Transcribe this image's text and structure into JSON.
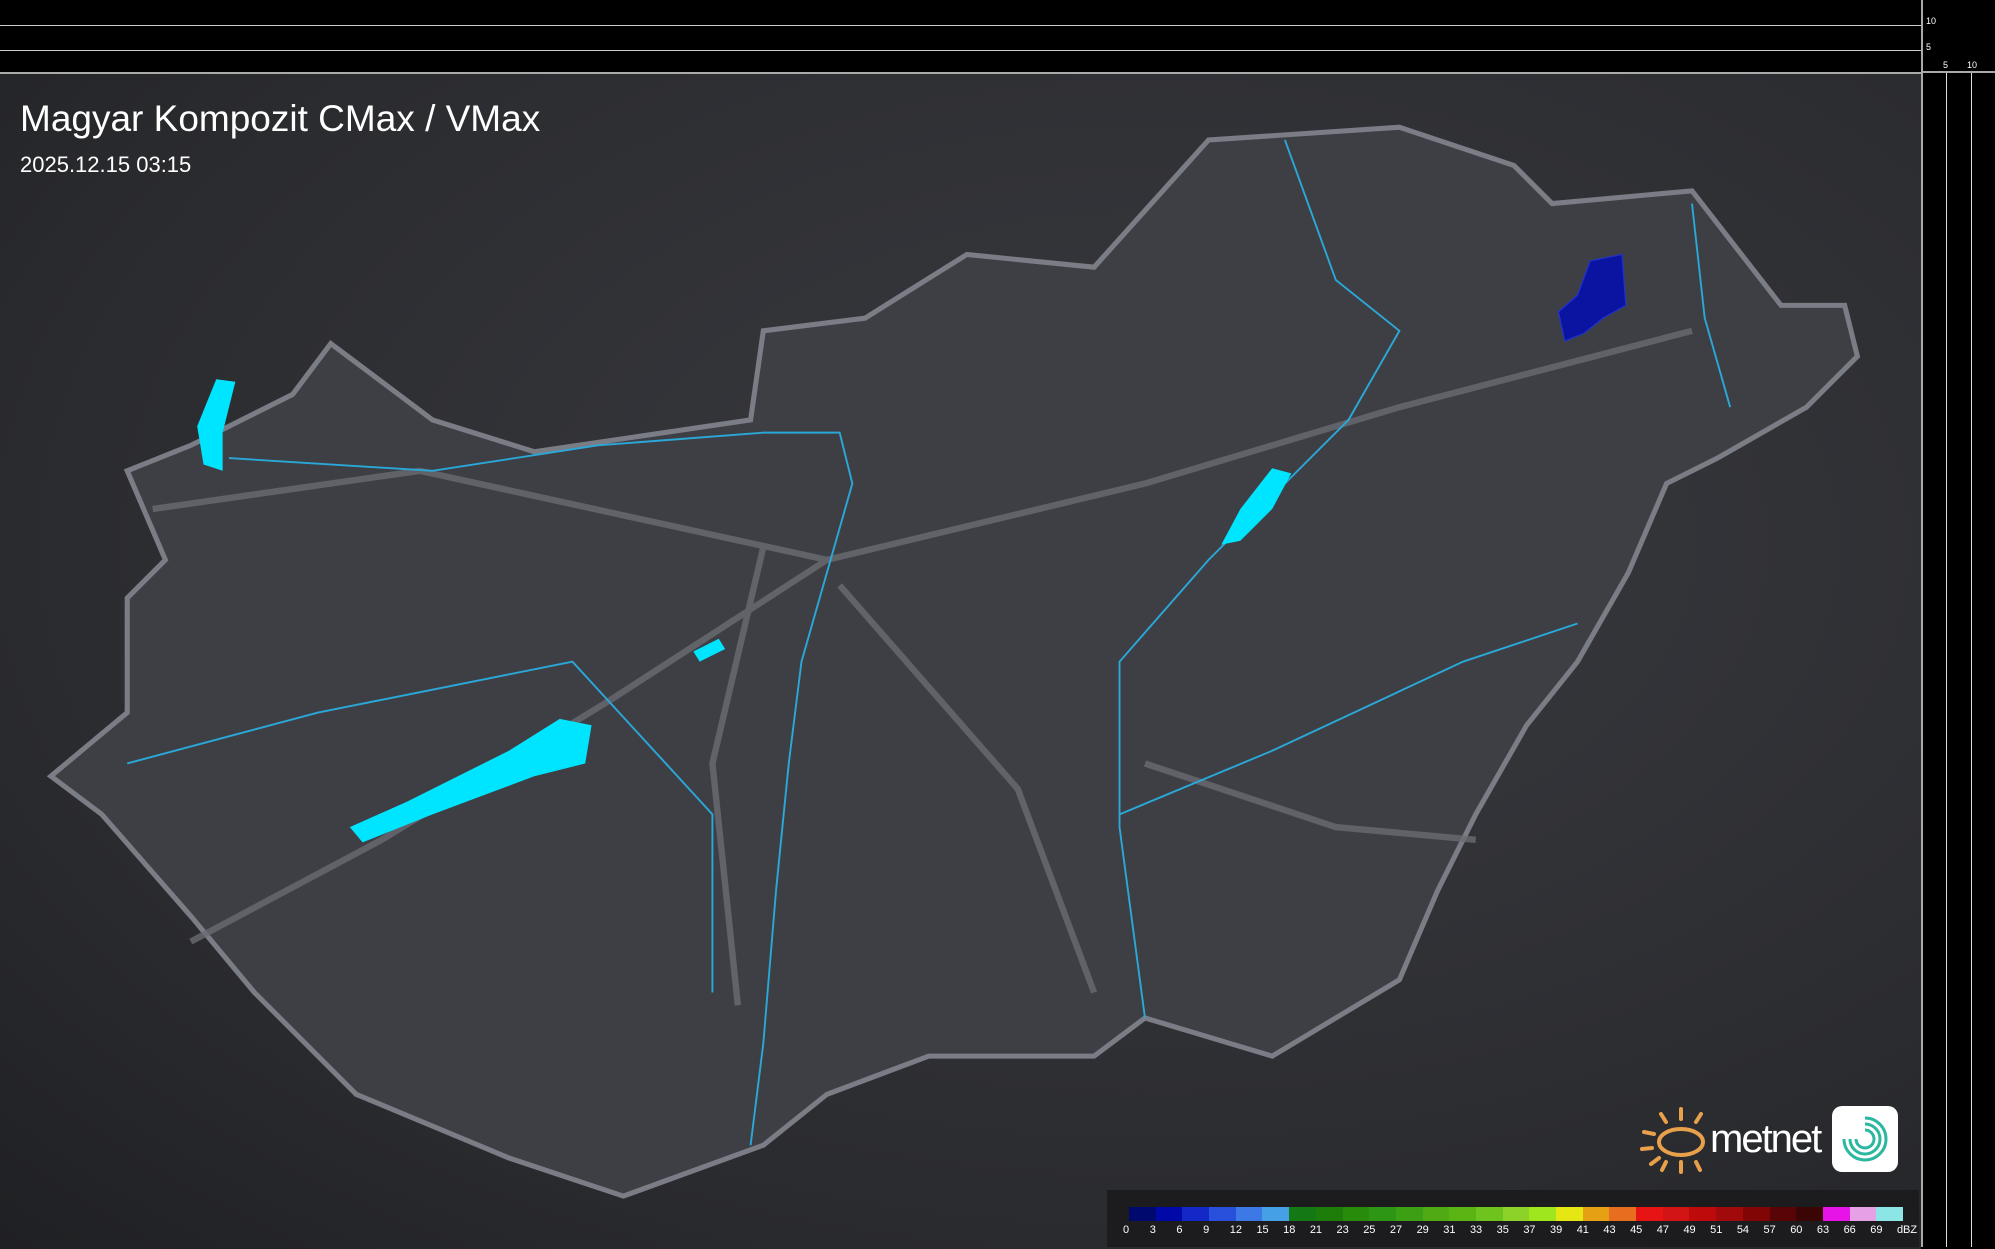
{
  "title": "Magyar Kompozit CMax / VMax",
  "timestamp": "2025.12.15 03:15",
  "axes": {
    "right_ticks": [
      "10",
      "5"
    ],
    "bottom_ticks": [
      "5",
      "10"
    ]
  },
  "logo": {
    "text": "metnet",
    "icon": "sun-icon",
    "app_icon": "swirl-icon"
  },
  "legend": {
    "unit": "dBZ",
    "labels": [
      "0",
      "3",
      "6",
      "9",
      "12",
      "15",
      "18",
      "21",
      "23",
      "25",
      "27",
      "29",
      "31",
      "33",
      "35",
      "37",
      "39",
      "41",
      "43",
      "45",
      "47",
      "49",
      "51",
      "54",
      "57",
      "60",
      "63",
      "66",
      "69"
    ],
    "colors": [
      "#000a6e",
      "#0008a8",
      "#1428c8",
      "#2850dc",
      "#3c78e6",
      "#46a0e6",
      "#147814",
      "#1e7d0a",
      "#288c0a",
      "#2d9614",
      "#3ca014",
      "#50aa14",
      "#5ab414",
      "#6ec31e",
      "#8cd228",
      "#a0e61e",
      "#e6e614",
      "#e6a014",
      "#e66e1e",
      "#e61414",
      "#d21414",
      "#be0a0a",
      "#a00a0a",
      "#820505",
      "#5a0505",
      "#3c0505",
      "#e614e6",
      "#e6a0e6",
      "#8ce6e6"
    ]
  },
  "colors": {
    "lakes": "#00e5ff",
    "rivers": "#2aa8d8",
    "echo": "#0a14a0"
  }
}
